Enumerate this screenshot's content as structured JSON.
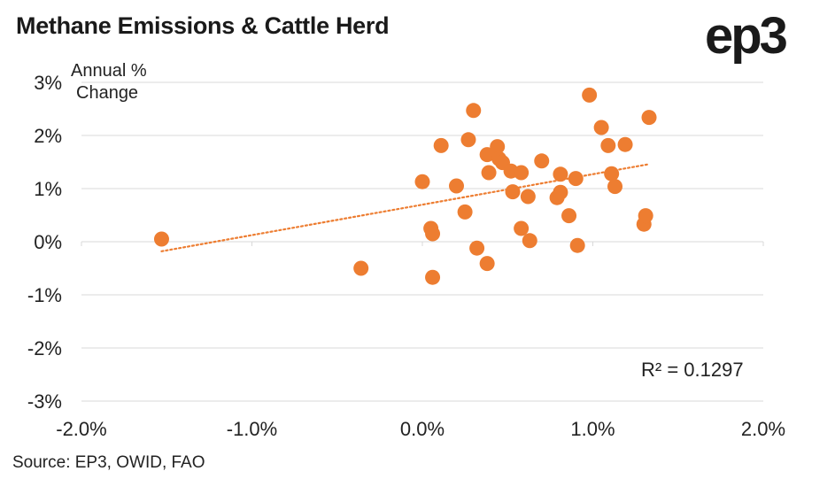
{
  "header": {
    "title": "Methane Emissions & Cattle Herd",
    "logo": "ep3"
  },
  "footer": {
    "source": "Source: EP3, OWID, FAO"
  },
  "chart_data": {
    "type": "scatter",
    "title": "Methane Emissions & Cattle Herd",
    "ylabel_line1": "Annual %",
    "ylabel_line2": "Change",
    "xlabel": "",
    "xlim": [
      -0.02,
      0.02
    ],
    "ylim": [
      -0.03,
      0.03
    ],
    "xticks": [
      -0.02,
      -0.01,
      0.0,
      0.01,
      0.02
    ],
    "xtick_labels": [
      "-2.0%",
      "-1.0%",
      "0.0%",
      "1.0%",
      "2.0%"
    ],
    "yticks": [
      0.03,
      0.02,
      0.01,
      0.0,
      -0.01,
      -0.02,
      -0.03
    ],
    "ytick_labels": [
      "3%",
      "2%",
      "1%",
      "0%",
      "-1%",
      "-2%",
      "-3%"
    ],
    "grid": "horizontal",
    "marker_color": "#ED7D31",
    "trendline": {
      "type": "linear",
      "style": "dotted",
      "color": "#ED7D31",
      "x_start": -0.0153,
      "y_start": -0.0018,
      "x_end": 0.0133,
      "y_end": 0.0146
    },
    "r_squared_label": "R² = 0.1297",
    "points": [
      {
        "x": -0.0153,
        "y": 0.0005
      },
      {
        "x": -0.0036,
        "y": -0.005
      },
      {
        "x": 0.0,
        "y": 0.0113
      },
      {
        "x": 0.0005,
        "y": 0.0025
      },
      {
        "x": 0.0006,
        "y": 0.0015
      },
      {
        "x": 0.0006,
        "y": -0.0067
      },
      {
        "x": 0.0011,
        "y": 0.0181
      },
      {
        "x": 0.002,
        "y": 0.0105
      },
      {
        "x": 0.0025,
        "y": 0.0056
      },
      {
        "x": 0.0027,
        "y": 0.0192
      },
      {
        "x": 0.003,
        "y": 0.0247
      },
      {
        "x": 0.0032,
        "y": -0.0012
      },
      {
        "x": 0.0038,
        "y": 0.0164
      },
      {
        "x": 0.0038,
        "y": -0.0041
      },
      {
        "x": 0.0039,
        "y": 0.013
      },
      {
        "x": 0.0044,
        "y": 0.0179
      },
      {
        "x": 0.0045,
        "y": 0.0156
      },
      {
        "x": 0.0047,
        "y": 0.0149
      },
      {
        "x": 0.0052,
        "y": 0.0133
      },
      {
        "x": 0.0053,
        "y": 0.0094
      },
      {
        "x": 0.0058,
        "y": 0.013
      },
      {
        "x": 0.0058,
        "y": 0.0025
      },
      {
        "x": 0.0062,
        "y": 0.0085
      },
      {
        "x": 0.0063,
        "y": 0.0002
      },
      {
        "x": 0.007,
        "y": 0.0152
      },
      {
        "x": 0.0079,
        "y": 0.0083
      },
      {
        "x": 0.0081,
        "y": 0.0093
      },
      {
        "x": 0.0081,
        "y": 0.0127
      },
      {
        "x": 0.0086,
        "y": 0.0049
      },
      {
        "x": 0.009,
        "y": 0.0119
      },
      {
        "x": 0.0091,
        "y": -0.0007
      },
      {
        "x": 0.0098,
        "y": 0.0276
      },
      {
        "x": 0.0105,
        "y": 0.0215
      },
      {
        "x": 0.0109,
        "y": 0.0181
      },
      {
        "x": 0.0111,
        "y": 0.0128
      },
      {
        "x": 0.0113,
        "y": 0.0104
      },
      {
        "x": 0.0119,
        "y": 0.0183
      },
      {
        "x": 0.013,
        "y": 0.0033
      },
      {
        "x": 0.0131,
        "y": 0.0049
      },
      {
        "x": 0.0133,
        "y": 0.0234
      }
    ]
  }
}
